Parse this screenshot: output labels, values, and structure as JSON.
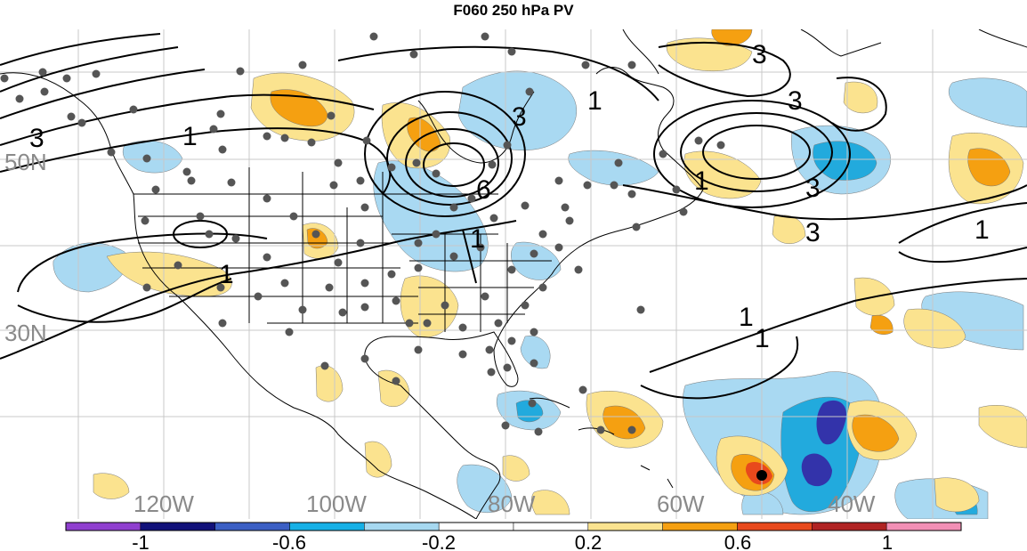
{
  "title": "F060 250 hPa PV",
  "map": {
    "lat_labels": [
      "50N",
      "30N"
    ],
    "lon_labels": [
      "120W",
      "100W",
      "80W",
      "60W",
      "40W"
    ],
    "contour_labels": [
      "3",
      "1",
      "1",
      "3",
      "6",
      "1",
      "1",
      "3",
      "3",
      "3",
      "1",
      "1",
      "1",
      "1",
      "3"
    ],
    "colors": {
      "neg_strong": "#3333aa",
      "neg_mid": "#22aadd",
      "neg_light": "#a9d9f2",
      "pos_light": "#fbe38f",
      "pos_mid": "#f5a011",
      "pos_strong": "#e8491c",
      "contour": "#000000",
      "station": "#555555",
      "grid": "#c8c8c8",
      "borders": "#000000"
    }
  },
  "colorbar": {
    "tick_labels": [
      "-1",
      "-0.6",
      "-0.2",
      "0.2",
      "0.6",
      "1"
    ],
    "colors": [
      "#8f3fcf",
      "#12127a",
      "#3b5fc4",
      "#16b0e6",
      "#a6d8f0",
      "#ffffff",
      "#ffffff",
      "#fbe38f",
      "#f5a011",
      "#e8491c",
      "#b02323",
      "#f28fb5"
    ]
  }
}
